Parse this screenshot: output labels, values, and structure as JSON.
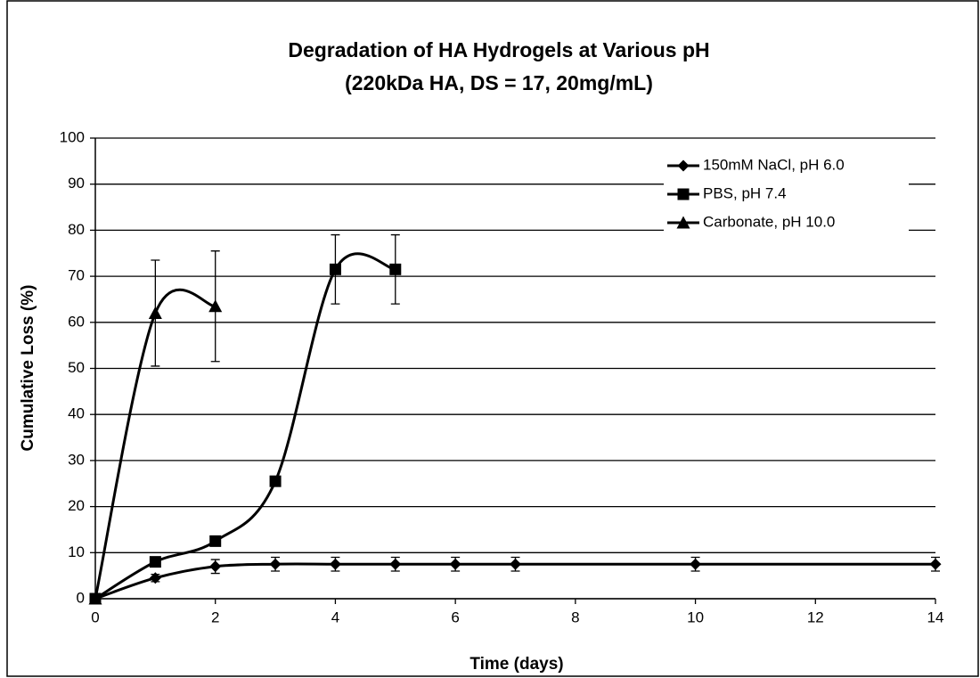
{
  "chart_data": {
    "type": "line",
    "title": "Degradation of HA Hydrogels at Various pH",
    "subtitle": "(220kDa HA, DS = 17, 20mg/mL)",
    "x_label": "Time (days)",
    "y_label": "Cumulative Loss (%)",
    "xlim": [
      0,
      14
    ],
    "xticks": [
      0,
      2,
      4,
      6,
      8,
      10,
      12,
      14
    ],
    "ylim": [
      0,
      100
    ],
    "yticks": [
      0,
      10,
      20,
      30,
      40,
      50,
      60,
      70,
      80,
      90,
      100
    ],
    "grid": true,
    "legend": "upper right",
    "series": [
      {
        "name": "150mM NaCl, pH 6.0",
        "color": "#000000",
        "marker": "diamond",
        "x": [
          0,
          1,
          2,
          3,
          4,
          5,
          6,
          7,
          10,
          14
        ],
        "values": [
          0,
          4.5,
          7,
          7.5,
          7.5,
          7.5,
          7.5,
          7.5,
          7.5,
          7.5
        ],
        "errors": [
          0.5,
          0.8,
          1.5,
          1.5,
          1.5,
          1.5,
          1.5,
          1.5,
          1.5,
          1.5
        ]
      },
      {
        "name": "PBS, pH 7.4",
        "color": "#000000",
        "marker": "square",
        "x": [
          0,
          1,
          2,
          3,
          4,
          5
        ],
        "values": [
          0,
          8,
          12.5,
          25.5,
          71.5,
          71.5
        ],
        "errors": [
          0.5,
          1,
          1,
          1,
          7.5,
          7.5
        ]
      },
      {
        "name": "Carbonate, pH 10.0",
        "color": "#000000",
        "marker": "triangle",
        "x": [
          0,
          1,
          2
        ],
        "values": [
          0,
          62,
          63.5
        ],
        "errors": [
          0.5,
          11.5,
          12
        ]
      }
    ]
  }
}
